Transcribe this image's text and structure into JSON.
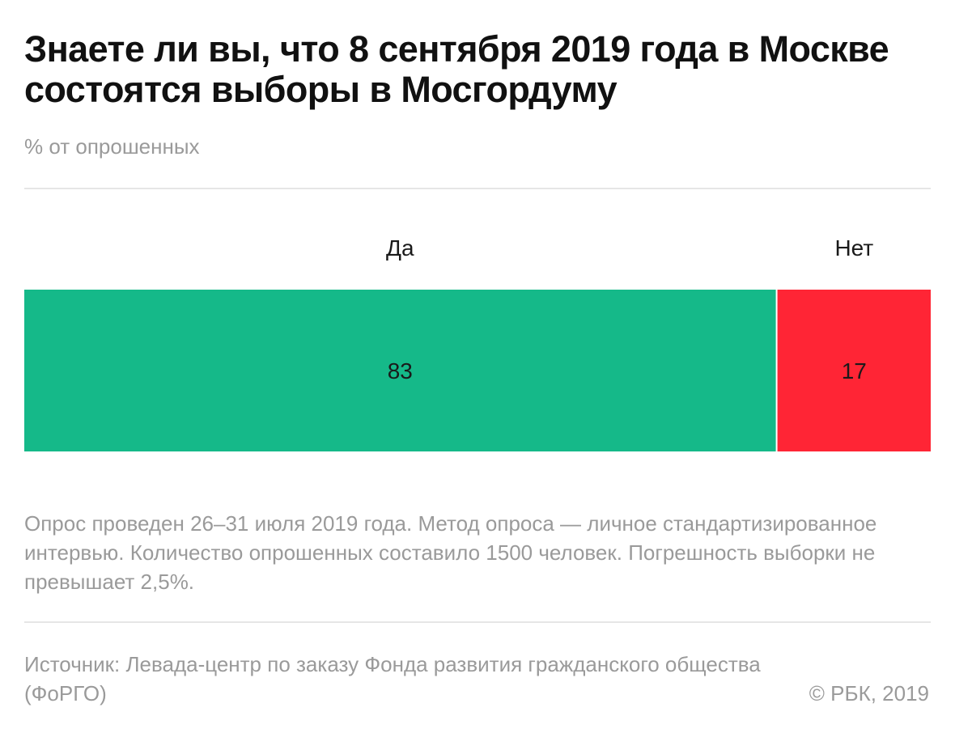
{
  "title": "Знаете ли вы, что 8 сентября 2019 года в Москве состоятся выборы в Мосгордуму",
  "subtitle": "% от опрошенных",
  "note": "Опрос проведен 26–31 июля 2019 года. Метод опроса — личное стандартизированное интервью. Количество опрошенных составило 1500 человек. Погрешность выборки не превышает 2,5%.",
  "source": "Источник: Левада-центр по заказу Фонда развития гражданского общества (ФоРГО)",
  "copyright": "© РБК, 2019",
  "chart_data": {
    "type": "bar",
    "orientation": "horizontal-stacked",
    "title": "Знаете ли вы, что 8 сентября 2019 года в Москве состоятся выборы в Мосгордуму",
    "ylabel": "% от опрошенных",
    "categories": [
      "Да",
      "Нет"
    ],
    "values": [
      83,
      17
    ],
    "colors": [
      "#15b989",
      "#ff2535"
    ],
    "total": 100
  }
}
